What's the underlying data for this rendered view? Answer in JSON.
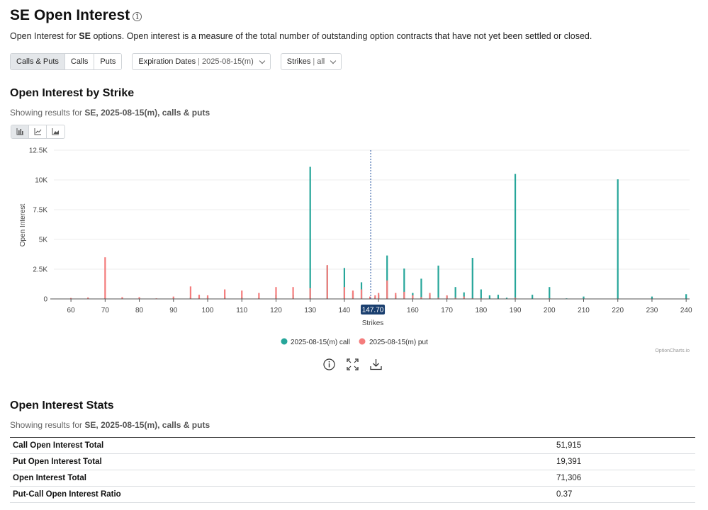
{
  "header": {
    "title": "SE Open Interest",
    "description_prefix": "Open Interest for ",
    "description_symbol": "SE",
    "description_suffix": " options. Open interest is a measure of the total number of outstanding option contracts that have not yet been settled or closed."
  },
  "controls": {
    "type_buttons": [
      "Calls & Puts",
      "Calls",
      "Puts"
    ],
    "active_type": "Calls & Puts",
    "expiration_label": "Expiration Dates",
    "expiration_value": "2025-08-15(m)",
    "strikes_label": "Strikes",
    "strikes_value": "all"
  },
  "oi_by_strike": {
    "title": "Open Interest by Strike",
    "showing_prefix": "Showing results for ",
    "showing_bold": "SE, 2025-08-15(m), calls & puts"
  },
  "chart_data": {
    "type": "bar",
    "xlabel": "Strikes",
    "ylabel": "Open Interest",
    "xlim": [
      55,
      241
    ],
    "ylim": [
      0,
      12500
    ],
    "yticks": [
      "0",
      "2.5K",
      "5K",
      "7.5K",
      "10K",
      "12.5K"
    ],
    "xticks": [
      60,
      70,
      80,
      90,
      100,
      110,
      120,
      130,
      140,
      150,
      160,
      170,
      180,
      190,
      200,
      210,
      220,
      230,
      240
    ],
    "price_marker": 147.7,
    "price_marker_label": "147.70",
    "grid": true,
    "legend_position": "bottom-center",
    "watermark": "OptionCharts.io",
    "series": [
      {
        "name": "2025-08-15(m) call",
        "color": "#26a69a",
        "points": [
          [
            60,
            20
          ],
          [
            65,
            15
          ],
          [
            70,
            60
          ],
          [
            75,
            30
          ],
          [
            80,
            40
          ],
          [
            85,
            30
          ],
          [
            90,
            50
          ],
          [
            95,
            150
          ],
          [
            97.5,
            60
          ],
          [
            100,
            120
          ],
          [
            105,
            200
          ],
          [
            110,
            150
          ],
          [
            115,
            100
          ],
          [
            120,
            350
          ],
          [
            125,
            350
          ],
          [
            130,
            11100
          ],
          [
            135,
            2800
          ],
          [
            140,
            2600
          ],
          [
            142.5,
            500
          ],
          [
            145,
            1400
          ],
          [
            147.5,
            100
          ],
          [
            149,
            150
          ],
          [
            150,
            350
          ],
          [
            152.5,
            3650
          ],
          [
            155,
            300
          ],
          [
            157.5,
            2550
          ],
          [
            160,
            500
          ],
          [
            162.5,
            1700
          ],
          [
            165,
            350
          ],
          [
            167.5,
            2800
          ],
          [
            170,
            250
          ],
          [
            172.5,
            1000
          ],
          [
            175,
            550
          ],
          [
            177.5,
            3450
          ],
          [
            180,
            800
          ],
          [
            182.5,
            300
          ],
          [
            185,
            350
          ],
          [
            187.5,
            100
          ],
          [
            190,
            10500
          ],
          [
            195,
            350
          ],
          [
            200,
            1000
          ],
          [
            205,
            50
          ],
          [
            210,
            200
          ],
          [
            220,
            10050
          ],
          [
            230,
            200
          ],
          [
            240,
            400
          ]
        ]
      },
      {
        "name": "2025-08-15(m) put",
        "color": "#f47c7c",
        "points": [
          [
            60,
            80
          ],
          [
            65,
            120
          ],
          [
            70,
            3500
          ],
          [
            75,
            150
          ],
          [
            80,
            150
          ],
          [
            85,
            50
          ],
          [
            90,
            200
          ],
          [
            95,
            1050
          ],
          [
            97.5,
            350
          ],
          [
            100,
            300
          ],
          [
            105,
            800
          ],
          [
            110,
            700
          ],
          [
            115,
            500
          ],
          [
            120,
            1000
          ],
          [
            125,
            1000
          ],
          [
            130,
            900
          ],
          [
            135,
            2850
          ],
          [
            140,
            1000
          ],
          [
            142.5,
            700
          ],
          [
            145,
            800
          ],
          [
            147.5,
            200
          ],
          [
            149,
            300
          ],
          [
            150,
            500
          ],
          [
            152.5,
            1550
          ],
          [
            155,
            500
          ],
          [
            157.5,
            600
          ],
          [
            160,
            300
          ],
          [
            162.5,
            150
          ],
          [
            165,
            500
          ],
          [
            167.5,
            100
          ],
          [
            170,
            300
          ],
          [
            172.5,
            100
          ],
          [
            175,
            200
          ],
          [
            177.5,
            50
          ],
          [
            180,
            50
          ],
          [
            190,
            100
          ],
          [
            200,
            50
          ]
        ]
      }
    ]
  },
  "stats": {
    "title": "Open Interest Stats",
    "showing_prefix": "Showing results for ",
    "showing_bold": "SE, 2025-08-15(m), calls & puts",
    "rows": [
      {
        "label": "Call Open Interest Total",
        "value": "51,915"
      },
      {
        "label": "Put Open Interest Total",
        "value": "19,391"
      },
      {
        "label": "Open Interest Total",
        "value": "71,306"
      },
      {
        "label": "Put-Call Open Interest Ratio",
        "value": "0.37"
      }
    ]
  }
}
